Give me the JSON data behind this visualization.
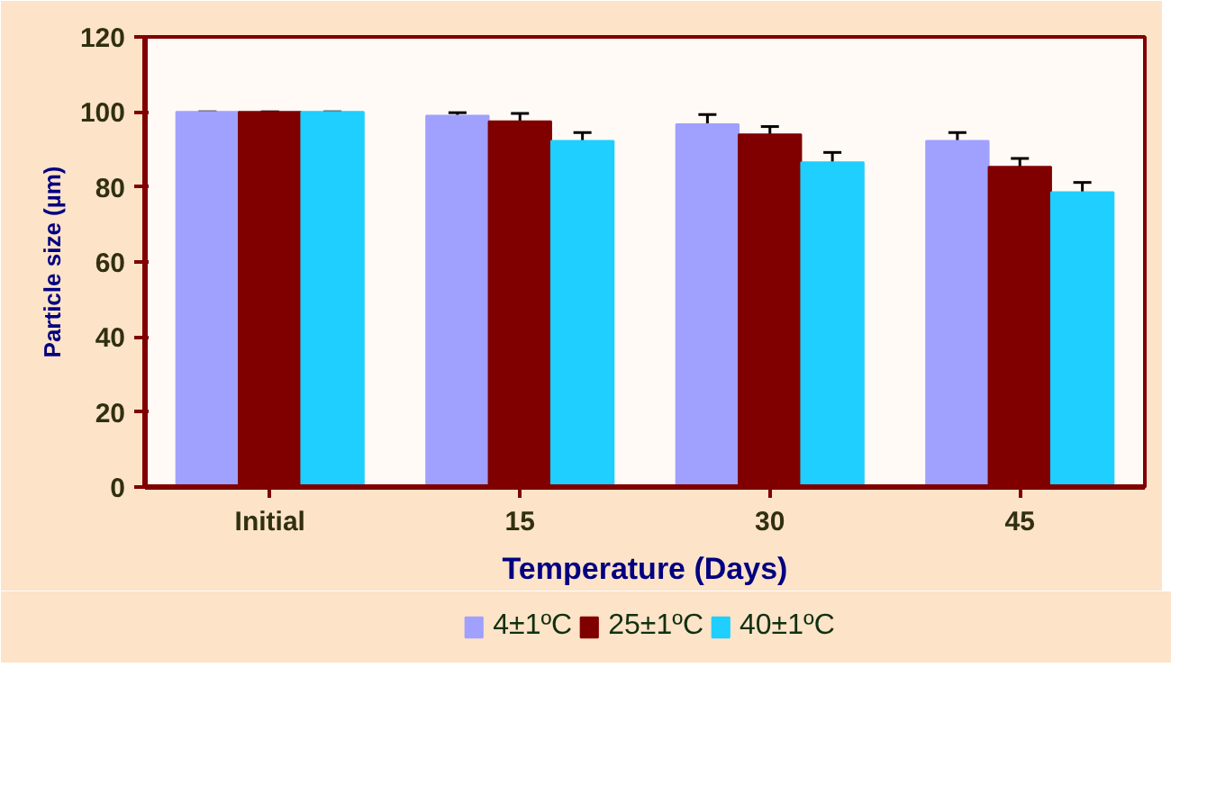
{
  "chart_data": {
    "type": "bar",
    "xlabel": "Temperature (Days)",
    "ylabel": "Particle size (µm)",
    "categories": [
      "Initial",
      "15",
      "30",
      "45"
    ],
    "series": [
      {
        "name": "4±1ºC",
        "color": "#a0a0ff",
        "values": [
          100,
          99,
          96.7,
          92.3
        ],
        "errors": [
          0,
          0.8,
          2.6,
          2.2
        ]
      },
      {
        "name": "25±1ºC",
        "color": "#800000",
        "values": [
          100,
          97.5,
          94,
          85.4
        ],
        "errors": [
          0,
          2.1,
          2.1,
          2.2
        ]
      },
      {
        "name": "40±1ºC",
        "color": "#1ecfff",
        "values": [
          100,
          92.3,
          86.6,
          78.6
        ],
        "errors": [
          0,
          2.2,
          2.6,
          2.6
        ]
      }
    ],
    "ylim": [
      0,
      120
    ],
    "yticks": [
      0,
      20,
      40,
      60,
      80,
      100,
      120
    ],
    "grid": false,
    "legend": "bottom"
  }
}
